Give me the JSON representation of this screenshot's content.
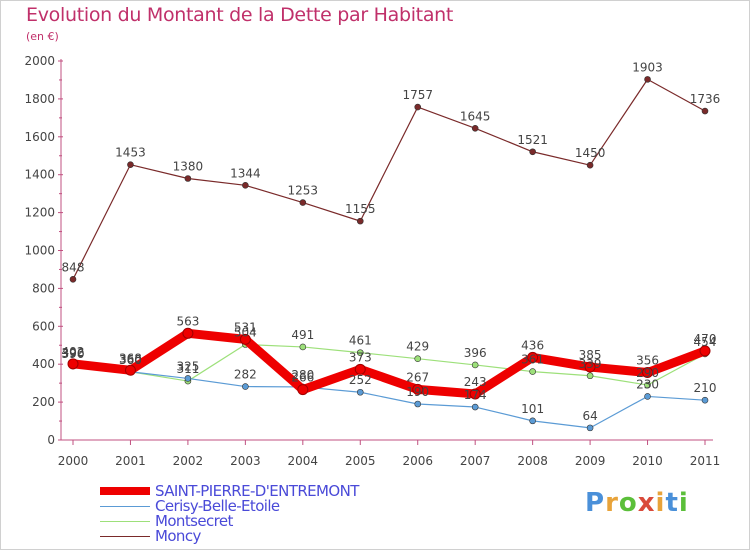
{
  "header": {
    "title": "Evolution du Montant de la Dette par Habitant",
    "subtitle": "(en €)"
  },
  "brand": {
    "text": "Proxiti",
    "colors": [
      "#4a90d9",
      "#e8a33a",
      "#5bbf3a",
      "#d94a3a",
      "#e8a33a",
      "#4a90d9",
      "#5bbf3a"
    ]
  },
  "chart_data": {
    "type": "line",
    "title": "Evolution du Montant de la Dette par Habitant",
    "subtitle": "(en €)",
    "x": [
      "2000",
      "2001",
      "2002",
      "2003",
      "2004",
      "2005",
      "2006",
      "2007",
      "2008",
      "2009",
      "2010",
      "2011"
    ],
    "ylim": [
      0,
      2000
    ],
    "yticks": [
      0,
      200,
      400,
      600,
      800,
      1000,
      1200,
      1400,
      1600,
      1800,
      2000
    ],
    "grid": false,
    "legend": "bottom-left",
    "series": [
      {
        "name": "SAINT-PIERRE-D'ENTREMONT",
        "color": "#ee0000",
        "values": [
          402,
          368,
          563,
          531,
          266,
          373,
          267,
          243,
          436,
          385,
          356,
          470
        ],
        "labels": [
          "402",
          "368",
          "563",
          "531",
          "266",
          "373",
          "267",
          "243",
          "436",
          "385",
          "356",
          "470"
        ],
        "emphasis": true
      },
      {
        "name": "Cerisy-Belle-Etoile",
        "color": "#5b9bd5",
        "values": [
          396,
          360,
          325,
          282,
          280,
          252,
          190,
          174,
          101,
          64,
          230,
          210
        ],
        "labels": [
          "396",
          "360",
          "325",
          "282",
          "280",
          "252",
          "190",
          "174",
          "101",
          "64",
          "230",
          "210"
        ],
        "emphasis": false
      },
      {
        "name": "Montsecret",
        "color": "#9de07a",
        "values": [
          390,
          360,
          311,
          504,
          491,
          461,
          429,
          396,
          361,
          339,
          290,
          454
        ],
        "labels": [
          "390",
          "360",
          "311",
          "504",
          "491",
          "461",
          "429",
          "396",
          "361",
          "339",
          "290",
          "454"
        ],
        "emphasis": false
      },
      {
        "name": "Moncy",
        "color": "#7a2a2a",
        "values": [
          848,
          1453,
          1380,
          1344,
          1253,
          1155,
          1757,
          1645,
          1521,
          1450,
          1903,
          1736
        ],
        "labels": [
          "848",
          "1453",
          "1380",
          "1344",
          "1253",
          "1155",
          "1757",
          "1645",
          "1521",
          "1450",
          "1903",
          "1736"
        ],
        "emphasis": false
      }
    ]
  }
}
